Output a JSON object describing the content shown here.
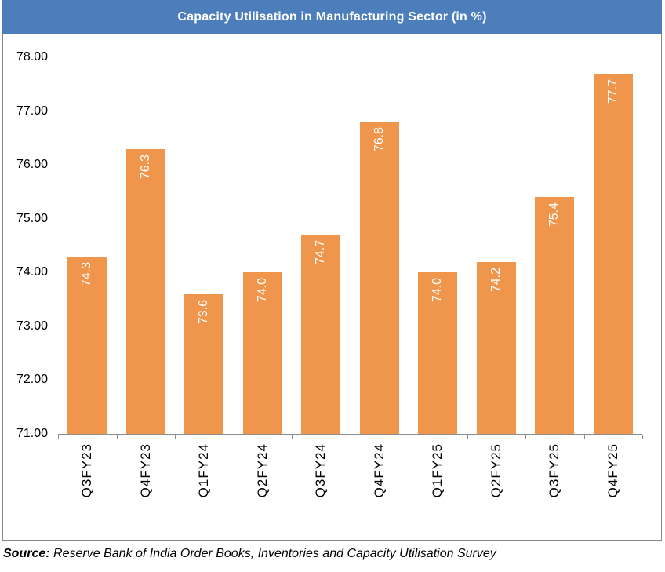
{
  "title": "Capacity Utilisation in Manufacturing Sector (in %)",
  "source": {
    "label": "Source:",
    "text": " Reserve Bank of India Order Books, Inventories and Capacity Utilisation Survey"
  },
  "colors": {
    "title_bar_bg": "#4C7EBC",
    "title_text": "#FFFFFF",
    "bar_fill": "#F0954C",
    "bar_label_text": "#FFFFFF",
    "axis_line": "#8C8C8C",
    "axis_text": "#000000",
    "box_border": "#888888"
  },
  "chart_data": {
    "type": "bar",
    "title": "Capacity Utilisation in Manufacturing Sector (in %)",
    "categories": [
      "Q3FY23",
      "Q4FY23",
      "Q1FY24",
      "Q2FY24",
      "Q3FY24",
      "Q4FY24",
      "Q1FY25",
      "Q2FY25",
      "Q3FY25",
      "Q4FY25"
    ],
    "values": [
      74.3,
      76.3,
      73.6,
      74.0,
      74.7,
      76.8,
      74.0,
      74.2,
      75.4,
      77.7
    ],
    "data_labels": [
      "74.3",
      "76.3",
      "73.6",
      "74.0",
      "74.7",
      "76.8",
      "74.0",
      "74.2",
      "75.4",
      "77.7"
    ],
    "xlabel": "",
    "ylabel": "",
    "ylim": [
      71,
      78
    ],
    "ytick_step": 1,
    "ytick_labels": [
      "78.00",
      "77.00",
      "76.00",
      "75.00",
      "74.00",
      "73.00",
      "72.00",
      "71.00"
    ],
    "grid": false,
    "legend": false,
    "data_label_position": "inside-end",
    "text_rotation": "vertical-bottom-to-top"
  }
}
